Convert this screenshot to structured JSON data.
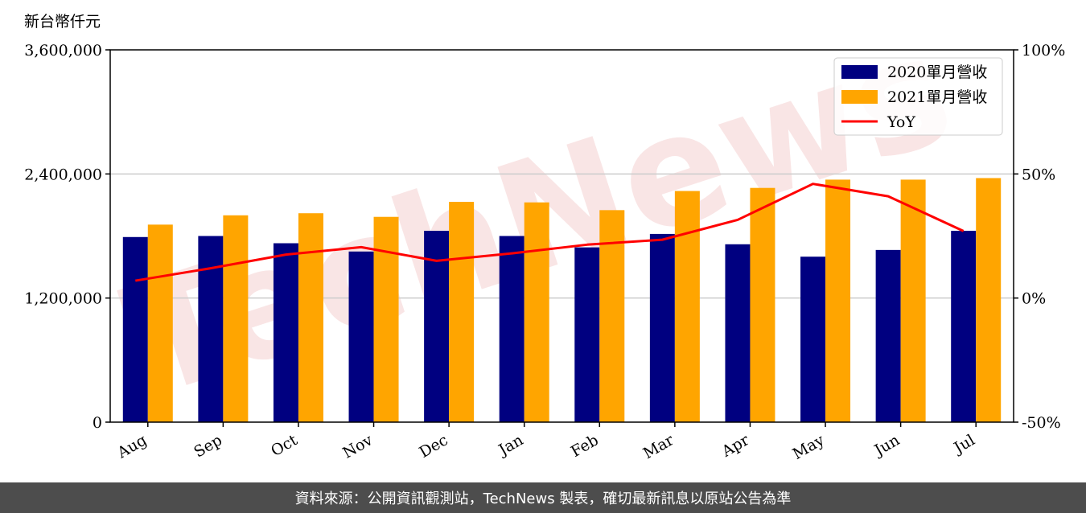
{
  "chart_data": {
    "type": "bar",
    "unit_label": "新台幣仟元",
    "categories": [
      "Aug",
      "Sep",
      "Oct",
      "Nov",
      "Dec",
      "Jan",
      "Feb",
      "Mar",
      "Apr",
      "May",
      "Jun",
      "Jul"
    ],
    "series": [
      {
        "name": "2020單月營收",
        "type": "bar",
        "color": "#000080",
        "values": [
          1790000,
          1800000,
          1730000,
          1650000,
          1850000,
          1800000,
          1690000,
          1820000,
          1720000,
          1600000,
          1665000,
          1850000
        ]
      },
      {
        "name": "2021單月營收",
        "type": "bar",
        "color": "#ffa500",
        "values": [
          1910000,
          2000000,
          2020000,
          1985000,
          2130000,
          2125000,
          2050000,
          2235000,
          2265000,
          2345000,
          2345000,
          2360000
        ]
      },
      {
        "name": "YoY",
        "type": "line",
        "color": "#ff0000",
        "axis": "right",
        "values": [
          7,
          12,
          17.5,
          20.5,
          15,
          18,
          21.5,
          23.5,
          31.5,
          46,
          41,
          27
        ]
      }
    ],
    "left_axis": {
      "ylim": [
        0,
        3600000
      ],
      "ticks": [
        0,
        1200000,
        2400000,
        3600000
      ],
      "tick_labels": [
        "0",
        "1,200,000",
        "2,400,000",
        "3,600,000"
      ]
    },
    "right_axis": {
      "ylim": [
        -50,
        100
      ],
      "ticks": [
        -50,
        0,
        50,
        100
      ],
      "tick_labels": [
        "-50%",
        "0%",
        "50%",
        "100%"
      ]
    },
    "grid": "horizontal",
    "legend_position": "top-right"
  },
  "watermark": "TechNews",
  "footer": {
    "text": "資料來源：公開資訊觀測站，TechNews 製表，確切最新訊息以原站公告為準"
  }
}
